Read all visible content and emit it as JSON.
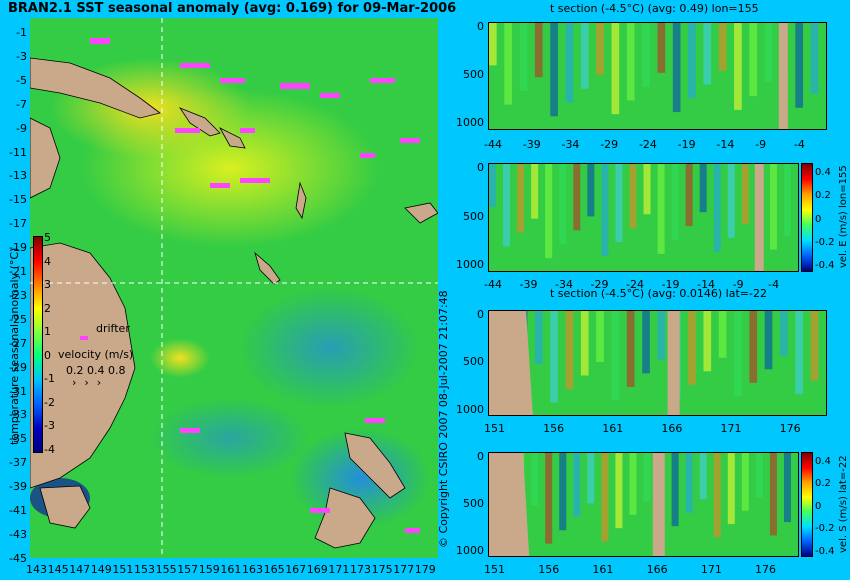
{
  "main_map": {
    "title": "BRAN2.1 SST seasonal anomaly (avg: 0.169) for 09-Mar-2006",
    "lat_ticks": [
      "-1",
      "-3",
      "-5",
      "-7",
      "-9",
      "-11",
      "-13",
      "-15",
      "-17",
      "-19",
      "-21",
      "-23",
      "-25",
      "-27",
      "-29",
      "-31",
      "-33",
      "-35",
      "-37",
      "-39",
      "-41",
      "-43",
      "-45"
    ],
    "lon_ticks": [
      "143",
      "145",
      "147",
      "149",
      "151",
      "153",
      "155",
      "157",
      "159",
      "161",
      "163",
      "165",
      "167",
      "169",
      "171",
      "173",
      "175",
      "177",
      "179"
    ],
    "colorbar_ticks": [
      "5",
      "4",
      "3",
      "2",
      "1",
      "0",
      "-1",
      "-2",
      "-3",
      "-4"
    ],
    "colorbar_label": "temperature seasonal anomaly (°C)",
    "legend": {
      "drifter": "drifter",
      "velocity_label": "velocity (m/s)",
      "velocity_values": "0.2 0.4 0.8"
    }
  },
  "panels": [
    {
      "title": "t section (-4.5°C) (avg: 0.49) lon=155",
      "x_ticks": [
        "-44",
        "-39",
        "-34",
        "-29",
        "-24",
        "-19",
        "-14",
        "-9",
        "-4"
      ],
      "y_ticks": [
        "0",
        "500",
        "1000"
      ]
    },
    {
      "title": "",
      "x_ticks": [
        "-44",
        "-39",
        "-34",
        "-29",
        "-24",
        "-19",
        "-14",
        "-9",
        "-4"
      ],
      "y_ticks": [
        "0",
        "500",
        "1000"
      ],
      "colorbar_ticks": [
        "0.4",
        "0.2",
        "0",
        "-0.2",
        "-0.4"
      ],
      "side_label": "vel. E (m/s) lon=155"
    },
    {
      "title": "t section (-4.5°C) (avg: 0.0146) lat=-22",
      "x_ticks": [
        "151",
        "156",
        "161",
        "166",
        "171",
        "176"
      ],
      "y_ticks": [
        "0",
        "500",
        "1000"
      ]
    },
    {
      "title": "",
      "x_ticks": [
        "151",
        "156",
        "161",
        "166",
        "171",
        "176"
      ],
      "y_ticks": [
        "0",
        "500",
        "1000"
      ],
      "colorbar_ticks": [
        "0.4",
        "0.2",
        "0",
        "-0.2",
        "-0.4"
      ],
      "side_label": "vel. S (m/s) lat=-22"
    }
  ],
  "copyright": "© Copyright CSIRO 2007   08-Jul-2007 21:07:48",
  "colors": {
    "background": "#00c8ff",
    "field_green": "#33cc33",
    "land": "#c9a98a",
    "drifter": "#ff44ff"
  }
}
